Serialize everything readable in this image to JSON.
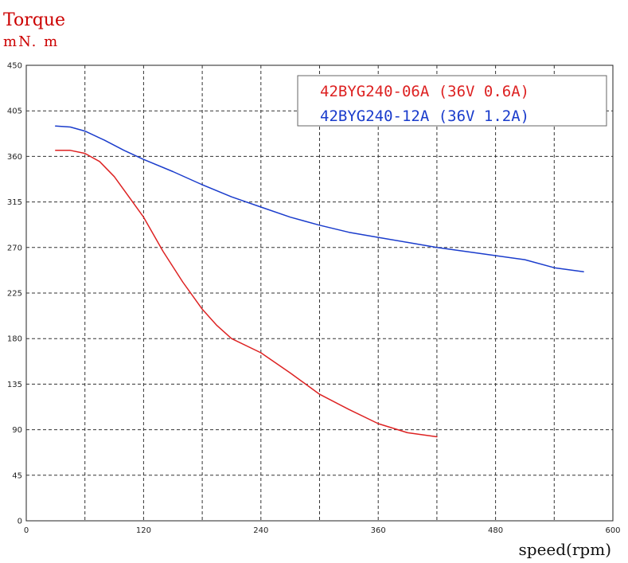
{
  "chart_data": {
    "type": "line",
    "ylabel": "Torque",
    "yunit": "mN. m",
    "xlabel": "speed(rpm)",
    "xlim": [
      0,
      600
    ],
    "ylim": [
      0,
      450
    ],
    "xticks": [
      0,
      120,
      240,
      360,
      480,
      600
    ],
    "yticks": [
      0,
      45,
      90,
      135,
      180,
      225,
      270,
      315,
      360,
      405,
      450
    ],
    "x_grid_step": 60,
    "y_grid_step": 45,
    "grid": true,
    "grid_style": "dashed",
    "legend_position": "top-right",
    "series": [
      {
        "name": "42BYG240-06A (36V 0.6A)",
        "color": "#dd2222",
        "x": [
          30,
          45,
          60,
          75,
          90,
          105,
          120,
          140,
          160,
          180,
          195,
          210,
          240,
          270,
          300,
          330,
          360,
          390,
          420
        ],
        "y": [
          366,
          366,
          363,
          355,
          340,
          320,
          300,
          266,
          236,
          209,
          193,
          180,
          166,
          146,
          125,
          110,
          96,
          87,
          83
        ]
      },
      {
        "name": "42BYG240-12A (36V 1.2A)",
        "color": "#1a3ccc",
        "x": [
          30,
          45,
          60,
          80,
          100,
          120,
          150,
          180,
          210,
          240,
          270,
          300,
          330,
          360,
          390,
          420,
          450,
          480,
          510,
          540,
          570
        ],
        "y": [
          390,
          389,
          385,
          376,
          366,
          357,
          345,
          332,
          320,
          310,
          300,
          292,
          285,
          280,
          275,
          270,
          266,
          262,
          258,
          250,
          246
        ]
      }
    ]
  }
}
